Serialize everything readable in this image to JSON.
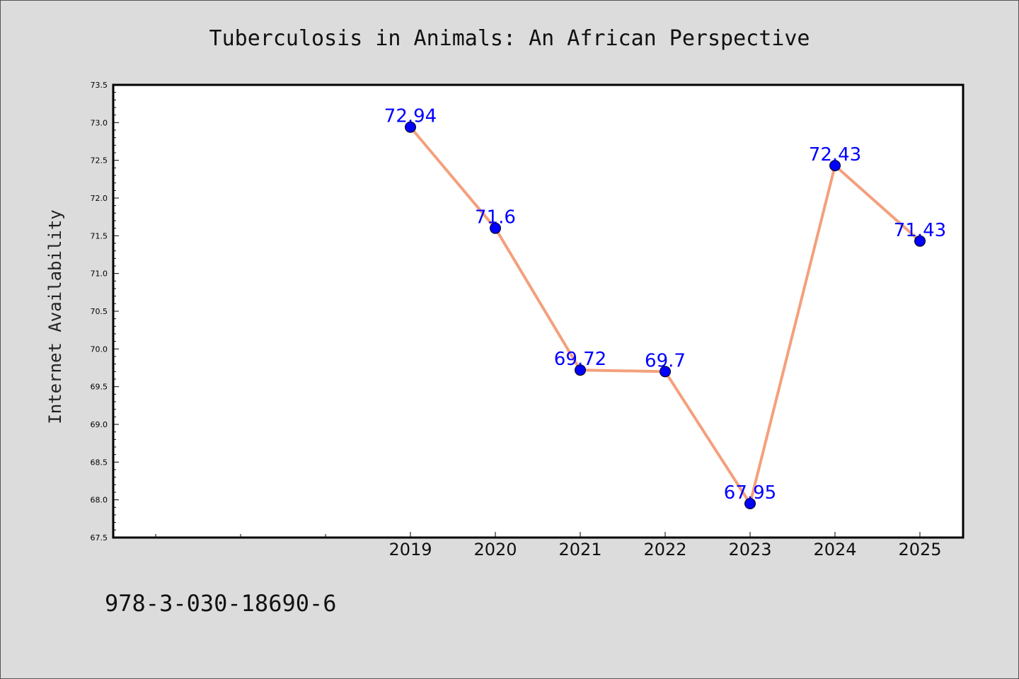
{
  "chart_data": {
    "type": "line",
    "title": "Tuberculosis in Animals: An African Perspective",
    "xlabel": "",
    "ylabel": "Internet Availability",
    "x": [
      "2019",
      "2020",
      "2021",
      "2022",
      "2023",
      "2024",
      "2025"
    ],
    "series": [
      {
        "values": [
          72.94,
          71.6,
          69.72,
          69.7,
          67.95,
          72.43,
          71.43
        ],
        "labels": [
          "72.94",
          "71.6",
          "69.72",
          "69.7",
          "67.95",
          "72.43",
          "71.43"
        ],
        "line_color": "#f4a07c",
        "marker_color": "#0000ff"
      }
    ],
    "ylim": [
      67.5,
      73.5
    ],
    "yticks": [
      "67.5",
      "68.0",
      "68.5",
      "69.0",
      "69.5",
      "70.0",
      "70.5",
      "71.0",
      "71.5",
      "72.0",
      "72.5",
      "73.0",
      "73.5"
    ],
    "grid": false,
    "legend": "none"
  },
  "footer": {
    "isbn": "978-3-030-18690-6"
  }
}
